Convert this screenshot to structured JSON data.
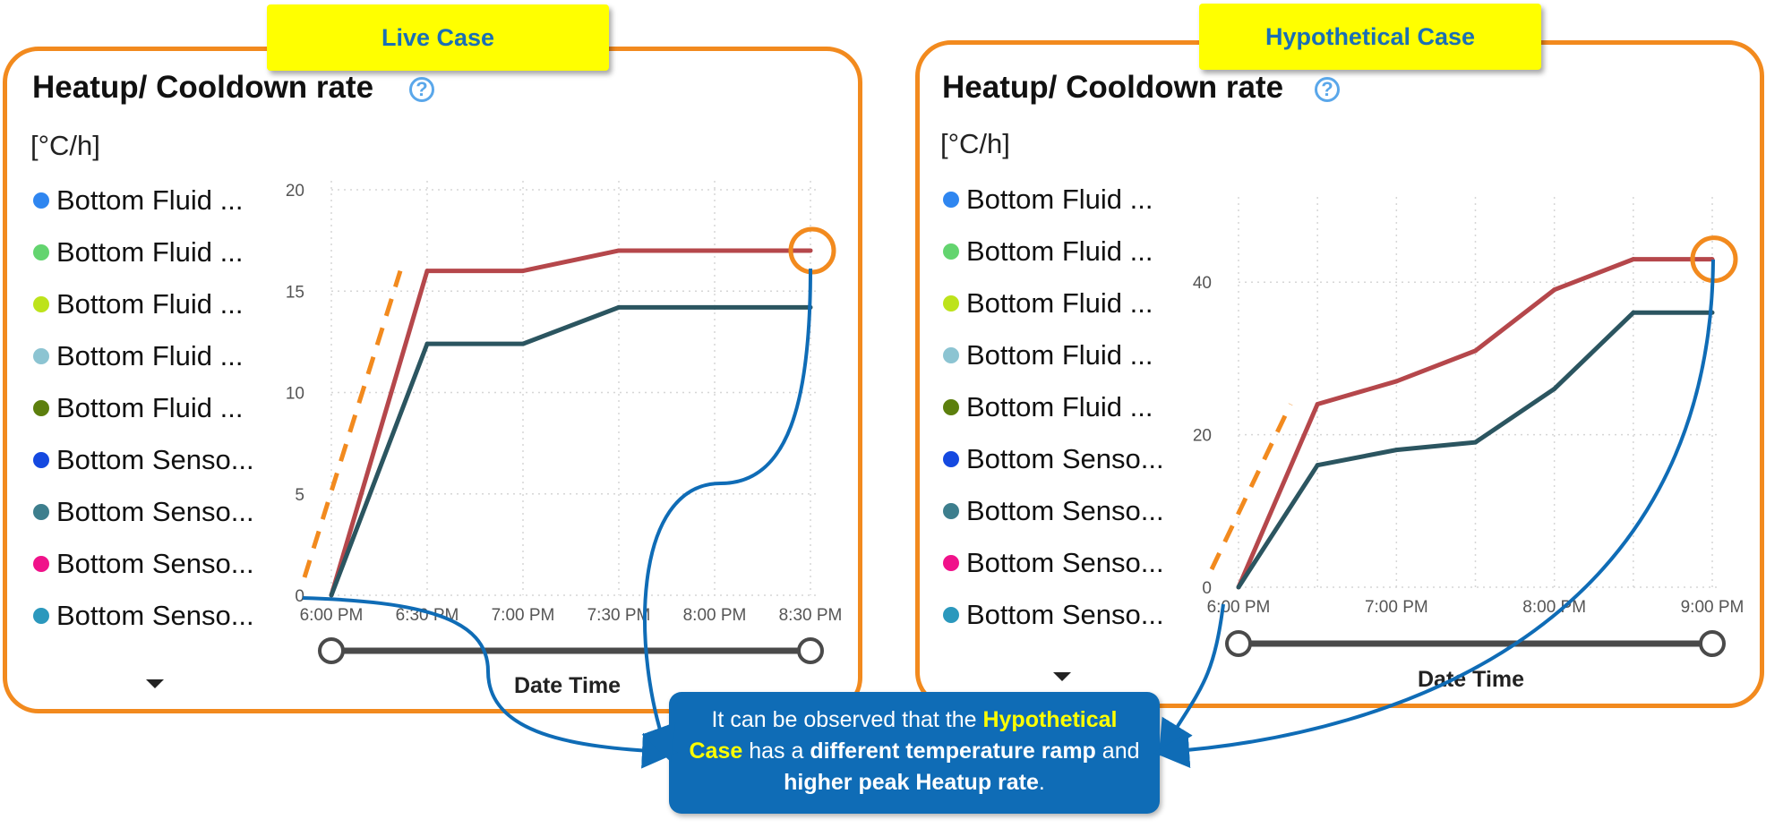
{
  "live": {
    "tag": "Live Case",
    "title": "Heatup/ Cooldown rate",
    "help_glyph": "?",
    "unit": "[°C/h]",
    "x_axis_title": "Date Time"
  },
  "hypothetical": {
    "tag": "Hypothetical Case",
    "title": "Heatup/ Cooldown rate",
    "help_glyph": "?",
    "unit": "[°C/h]",
    "x_axis_title": "Date Time"
  },
  "legend": [
    {
      "label": "Bottom Fluid ...",
      "color": "#2f86f0"
    },
    {
      "label": "Bottom Fluid ...",
      "color": "#63d46f"
    },
    {
      "label": "Bottom Fluid ...",
      "color": "#bde31b"
    },
    {
      "label": "Bottom Fluid ...",
      "color": "#8cc4d2"
    },
    {
      "label": "Bottom Fluid ...",
      "color": "#5c7f0d"
    },
    {
      "label": "Bottom Senso...",
      "color": "#1549e0"
    },
    {
      "label": "Bottom Senso...",
      "color": "#3d7e8d"
    },
    {
      "label": "Bottom Senso...",
      "color": "#f0128a"
    },
    {
      "label": "Bottom Senso...",
      "color": "#2b98bd"
    }
  ],
  "callout": {
    "p1": "It can be observed that the ",
    "hl": "Hypothetical Case",
    "p2": " has a ",
    "b1": "different temperature ramp",
    "p3": " and ",
    "b2": "higher peak Heatup rate",
    "p4": "."
  },
  "chart_data": [
    {
      "type": "line",
      "name": "Live Case",
      "x": [
        "6:00 PM",
        "6:30 PM",
        "7:00 PM",
        "7:30 PM",
        "8:00 PM",
        "8:30 PM"
      ],
      "xticks": [
        "6:00 PM",
        "6:30 PM",
        "7:00 PM",
        "7:30 PM",
        "8:00 PM",
        "8:30 PM"
      ],
      "yticks": [
        0,
        5,
        10,
        15,
        20
      ],
      "ylim": [
        0,
        20
      ],
      "grid": true,
      "series": [
        {
          "color": "#b5474b",
          "values": [
            0,
            16,
            16,
            17,
            17,
            17
          ]
        },
        {
          "color": "#2b5560",
          "values": [
            0,
            12.4,
            12.4,
            14.2,
            14.2,
            14.2
          ]
        }
      ],
      "xlabel": "Date Time",
      "ylabel": "[°C/h]"
    },
    {
      "type": "line",
      "name": "Hypothetical Case",
      "x": [
        "6:00 PM",
        "6:30 PM",
        "7:00 PM",
        "7:30 PM",
        "8:00 PM",
        "8:30 PM",
        "9:00 PM"
      ],
      "xticks": [
        "6:00 PM",
        "7:00 PM",
        "8:00 PM",
        "9:00 PM"
      ],
      "yticks": [
        0,
        20,
        40
      ],
      "ylim": [
        0,
        50
      ],
      "grid": true,
      "series": [
        {
          "color": "#b5474b",
          "values": [
            0,
            24,
            27,
            31,
            39,
            43,
            43
          ]
        },
        {
          "color": "#2b5560",
          "values": [
            0,
            16,
            18,
            19,
            26,
            36,
            36
          ]
        }
      ],
      "xlabel": "Date Time",
      "ylabel": "[°C/h]"
    }
  ],
  "colors": {
    "accent_orange": "#f28a1e",
    "callout_blue": "#0f6cb6",
    "tag_yellow": "#ffff00",
    "help_blue": "#5aa7ea"
  }
}
